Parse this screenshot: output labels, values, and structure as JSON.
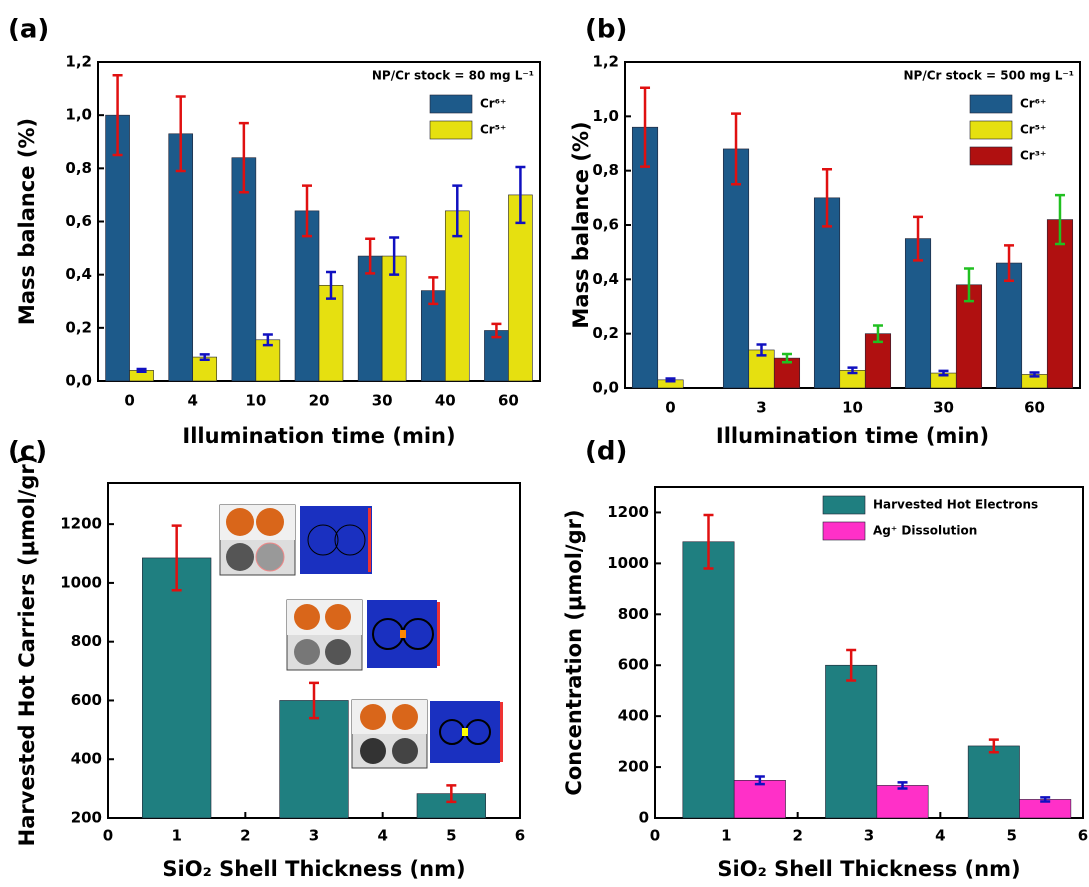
{
  "chart_data": [
    {
      "type": "bar",
      "title": "(a)",
      "annotation": "NP/Cr stock = 80 mg L⁻¹",
      "x_label": "Illumination time (min)",
      "y_label": "Mass balance (%)",
      "categories": [
        "0",
        "4",
        "10",
        "20",
        "30",
        "40",
        "60"
      ],
      "series": [
        {
          "name": "Cr⁶⁺",
          "color": "#1d5a8a",
          "error_color": "#e01010",
          "values": [
            1.0,
            0.93,
            0.84,
            0.64,
            0.47,
            0.34,
            0.19
          ],
          "errors": [
            0.15,
            0.14,
            0.13,
            0.095,
            0.065,
            0.05,
            0.025
          ]
        },
        {
          "name": "Cr⁵⁺",
          "color": "#e6e010",
          "error_color": "#1010c0",
          "values": [
            0.04,
            0.09,
            0.155,
            0.36,
            0.47,
            0.64,
            0.7
          ],
          "errors": [
            0.005,
            0.01,
            0.02,
            0.05,
            0.07,
            0.095,
            0.105
          ]
        }
      ],
      "ylim": [
        0,
        1.2
      ],
      "yticks": [
        {
          "value": 0,
          "label": "0,0"
        },
        {
          "value": 0.2,
          "label": "0,2"
        },
        {
          "value": 0.4,
          "label": "0,4"
        },
        {
          "value": 0.6,
          "label": "0,6"
        },
        {
          "value": 0.8,
          "label": "0,8"
        },
        {
          "value": 1.0,
          "label": "1,0"
        },
        {
          "value": 1.2,
          "label": "1,2"
        }
      ],
      "legend": "upper right",
      "grid": false
    },
    {
      "type": "bar",
      "title": "(b)",
      "annotation": "NP/Cr stock = 500 mg L⁻¹",
      "x_label": "Illumination time (min)",
      "y_label": "Mass balance (%)",
      "categories": [
        "0",
        "3",
        "10",
        "30",
        "60"
      ],
      "series": [
        {
          "name": "Cr⁶⁺",
          "color": "#1d5a8a",
          "error_color": "#e01010",
          "values": [
            0.96,
            0.88,
            0.7,
            0.55,
            0.46
          ],
          "errors": [
            0.145,
            0.13,
            0.105,
            0.08,
            0.065
          ]
        },
        {
          "name": "Cr⁵⁺",
          "color": "#e6e010",
          "error_color": "#1010c0",
          "values": [
            0.03,
            0.14,
            0.065,
            0.055,
            0.05
          ],
          "errors": [
            0.005,
            0.02,
            0.01,
            0.008,
            0.007
          ]
        },
        {
          "name": "Cr³⁺",
          "color": "#b01010",
          "error_color": "#20c020",
          "values": [
            null,
            0.11,
            0.2,
            0.38,
            0.62
          ],
          "errors": [
            null,
            0.015,
            0.03,
            0.06,
            0.09
          ]
        }
      ],
      "ylim": [
        0,
        1.2
      ],
      "yticks": [
        {
          "value": 0,
          "label": "0,0"
        },
        {
          "value": 0.2,
          "label": "0,2"
        },
        {
          "value": 0.4,
          "label": "0,4"
        },
        {
          "value": 0.6,
          "label": "0,6"
        },
        {
          "value": 0.8,
          "label": "0,8"
        },
        {
          "value": 1.0,
          "label": "1,0"
        },
        {
          "value": 1.2,
          "label": "1,2"
        }
      ],
      "legend": "upper right",
      "grid": false
    },
    {
      "type": "bar",
      "title": "(c)",
      "x_label": "SiO₂ Shell Thickness (nm)",
      "y_label": "Harvested Hot Carriers (μmol/gr)",
      "x": [
        1,
        3,
        5
      ],
      "series": [
        {
          "color": "#1f7f80",
          "error_color": "#e01010",
          "values": [
            1085,
            600,
            283
          ],
          "errors": [
            110,
            60,
            28
          ]
        }
      ],
      "xlim": [
        0,
        6
      ],
      "xticks": [
        0,
        1,
        2,
        3,
        4,
        5,
        6
      ],
      "ylim": [
        200,
        1340
      ],
      "yticks": [
        200,
        400,
        600,
        800,
        1000,
        1200
      ],
      "grid": false
    },
    {
      "type": "bar",
      "title": "(d)",
      "x_label": "SiO₂ Shell Thickness (nm)",
      "y_label": "Concentration (μmol/gr)",
      "x": [
        1,
        3,
        5
      ],
      "series": [
        {
          "name": "Harvested Hot Electrons",
          "color": "#1f7f80",
          "error_color": "#e01010",
          "values": [
            1085,
            600,
            283
          ],
          "errors": [
            105,
            60,
            25
          ]
        },
        {
          "name": "Ag⁺ Dissolution",
          "color": "#ff30c8",
          "error_color": "#1010c0",
          "values": [
            148,
            128,
            73
          ],
          "errors": [
            15,
            12,
            8
          ]
        }
      ],
      "xlim": [
        0,
        6
      ],
      "xticks": [
        0,
        1,
        2,
        3,
        4,
        5,
        6
      ],
      "ylim": [
        0,
        1300
      ],
      "yticks": [
        0,
        200,
        400,
        600,
        800,
        1000,
        1200
      ],
      "legend": "upper right",
      "grid": false
    }
  ]
}
